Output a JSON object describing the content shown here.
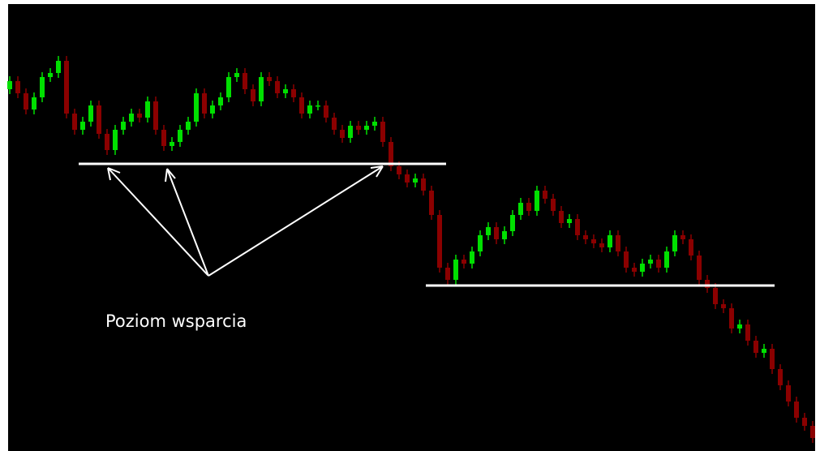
{
  "chart_data": {
    "type": "candlestick",
    "annotation": "Poziom wsparcia",
    "up_color": "#00e000",
    "down_color": "#8b0000",
    "background": "#000000",
    "ylim": [
      0,
      556
    ],
    "open": [
      446,
      456,
      441,
      421,
      436,
      461,
      466,
      481,
      416,
      396,
      406,
      426,
      391,
      371,
      396,
      406,
      416,
      411,
      431,
      396,
      376,
      381,
      396,
      406,
      441,
      416,
      426,
      436,
      461,
      466,
      446,
      431,
      461,
      456,
      441,
      446,
      436,
      416,
      426,
      426,
      411,
      396,
      386,
      401,
      396,
      401,
      406,
      381,
      351,
      341,
      331,
      336,
      321,
      291,
      226,
      211,
      236,
      231,
      246,
      266,
      276,
      261,
      271,
      291,
      306,
      296,
      321,
      311,
      296,
      281,
      286,
      266,
      261,
      256,
      251,
      266,
      246,
      226,
      221,
      231,
      236,
      226,
      246,
      266,
      261,
      241,
      211,
      201,
      181,
      176,
      151,
      156,
      136,
      121,
      126,
      101,
      81,
      61,
      41,
      31
    ],
    "high": [
      462,
      462,
      447,
      442,
      467,
      472,
      487,
      487,
      422,
      412,
      432,
      432,
      397,
      402,
      412,
      422,
      422,
      437,
      437,
      402,
      387,
      402,
      412,
      447,
      447,
      432,
      442,
      467,
      472,
      472,
      452,
      467,
      467,
      462,
      452,
      452,
      442,
      432,
      432,
      432,
      417,
      402,
      407,
      407,
      407,
      412,
      412,
      387,
      357,
      347,
      342,
      342,
      327,
      297,
      232,
      242,
      242,
      252,
      272,
      282,
      282,
      277,
      297,
      312,
      312,
      327,
      327,
      317,
      302,
      292,
      292,
      272,
      267,
      262,
      272,
      272,
      252,
      232,
      237,
      242,
      242,
      252,
      272,
      272,
      267,
      247,
      217,
      207,
      187,
      182,
      162,
      162,
      142,
      132,
      132,
      107,
      87,
      67,
      47,
      37
    ],
    "low": [
      440,
      435,
      415,
      415,
      430,
      455,
      460,
      410,
      390,
      390,
      400,
      385,
      365,
      365,
      390,
      400,
      405,
      405,
      390,
      370,
      370,
      375,
      390,
      400,
      410,
      410,
      420,
      430,
      455,
      440,
      425,
      425,
      450,
      435,
      435,
      430,
      410,
      410,
      420,
      405,
      390,
      380,
      380,
      390,
      390,
      395,
      375,
      345,
      335,
      325,
      325,
      315,
      285,
      220,
      205,
      205,
      225,
      225,
      240,
      260,
      255,
      255,
      265,
      285,
      290,
      290,
      305,
      290,
      275,
      275,
      260,
      255,
      250,
      245,
      245,
      240,
      220,
      215,
      215,
      225,
      220,
      220,
      240,
      255,
      235,
      205,
      195,
      175,
      170,
      145,
      145,
      130,
      115,
      115,
      95,
      75,
      55,
      35,
      25,
      10
    ],
    "close": [
      456,
      441,
      421,
      436,
      461,
      466,
      481,
      416,
      396,
      406,
      426,
      391,
      371,
      396,
      406,
      416,
      411,
      431,
      396,
      376,
      381,
      396,
      406,
      441,
      416,
      426,
      436,
      461,
      466,
      446,
      431,
      461,
      456,
      441,
      446,
      436,
      416,
      426,
      426,
      411,
      396,
      386,
      401,
      396,
      401,
      406,
      381,
      351,
      341,
      331,
      336,
      321,
      291,
      226,
      211,
      236,
      231,
      246,
      266,
      276,
      261,
      271,
      291,
      306,
      296,
      321,
      311,
      296,
      281,
      286,
      266,
      261,
      256,
      251,
      266,
      246,
      226,
      221,
      231,
      236,
      226,
      246,
      266,
      261,
      241,
      211,
      201,
      181,
      176,
      151,
      156,
      136,
      121,
      126,
      101,
      81,
      61,
      41,
      31,
      16
    ],
    "support_lines": [
      {
        "level": 354,
        "from": 8.5,
        "to": 53.8
      },
      {
        "level": 204,
        "from": 51.3,
        "to": 94.3
      }
    ]
  }
}
